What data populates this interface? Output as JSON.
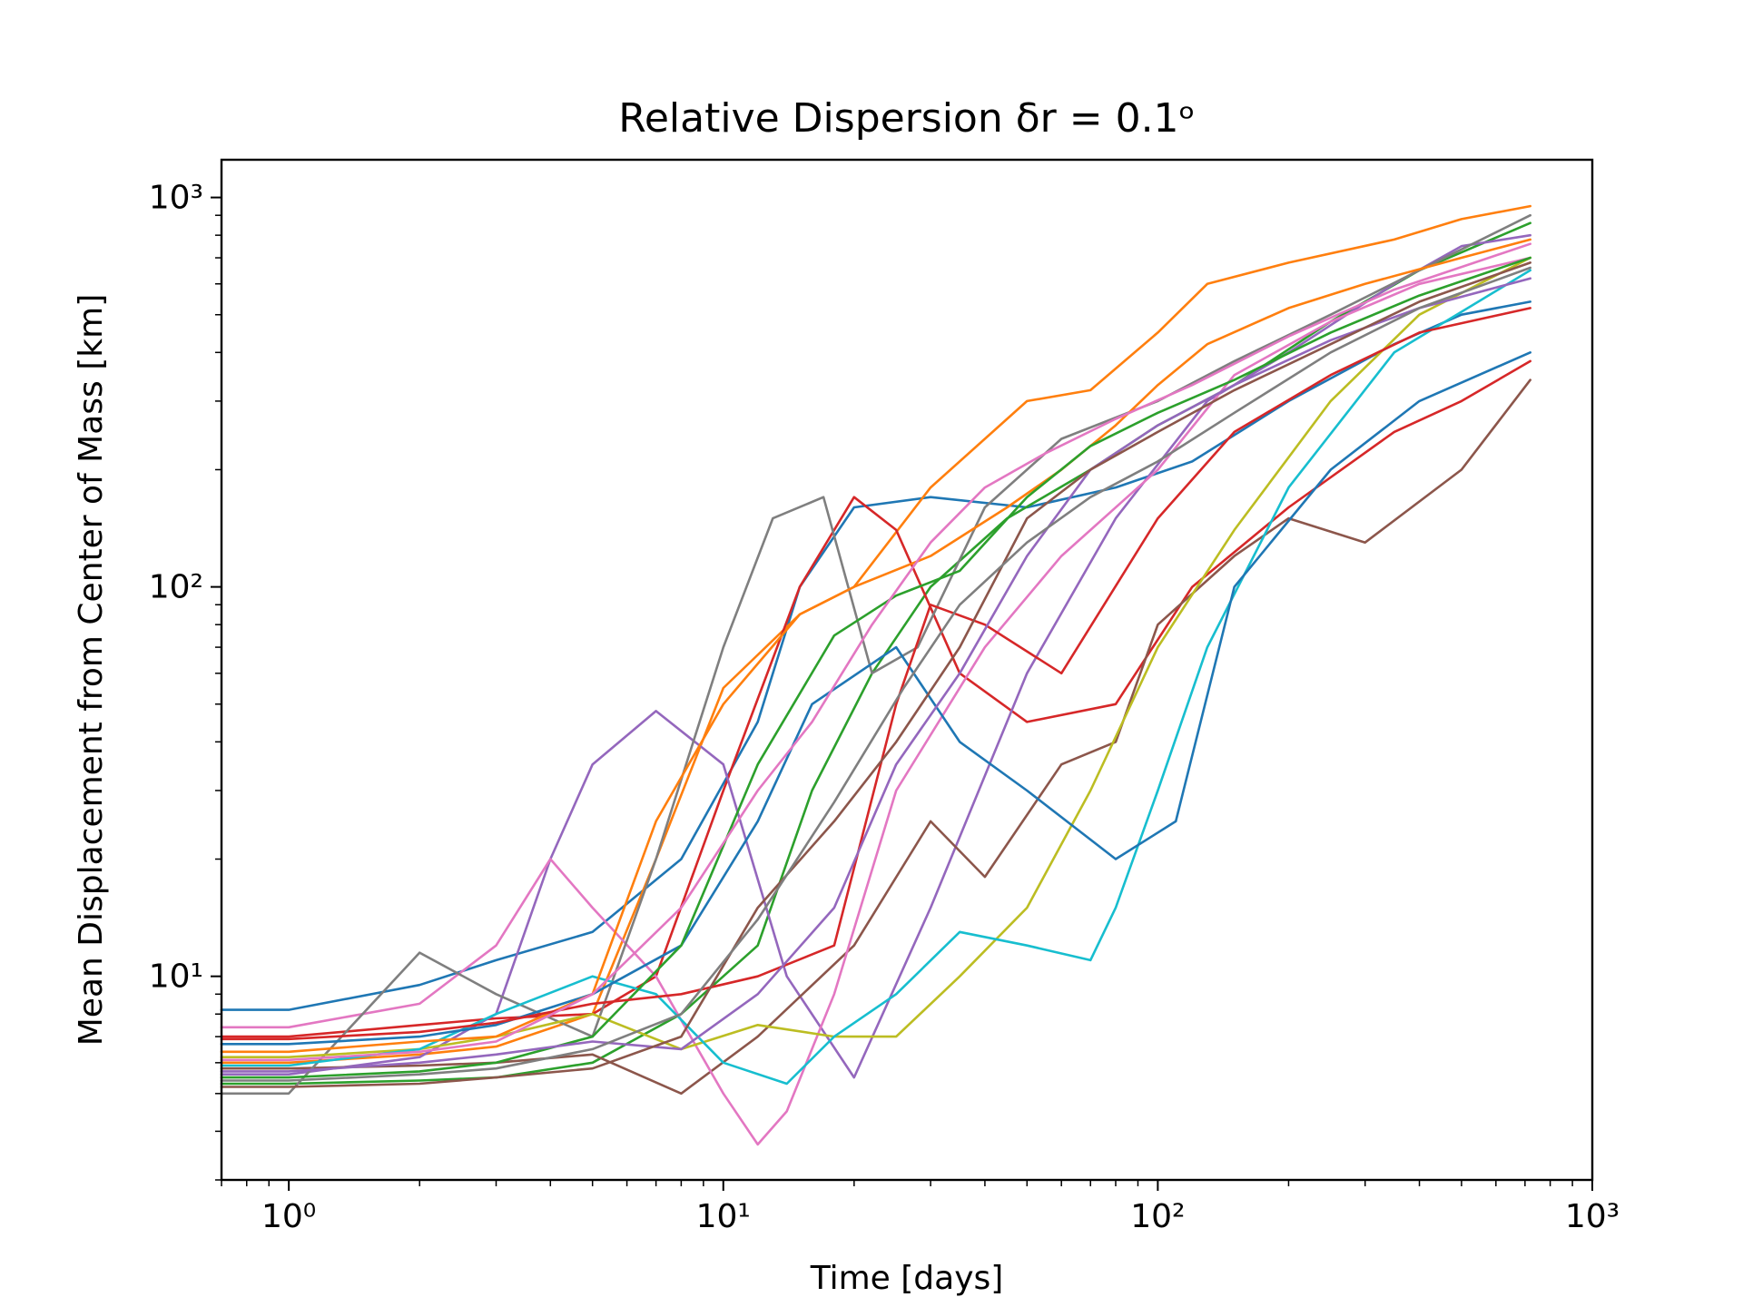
{
  "chart_data": {
    "type": "line",
    "title": "Relative Dispersion δr = 0.1ᵒ",
    "xlabel": "Time [days]",
    "ylabel": "Mean Displacement from Center of Mass [km]",
    "xscale": "log",
    "yscale": "log",
    "xlim": [
      0.7,
      1000
    ],
    "ylim": [
      3.0,
      1250
    ],
    "xticks": [
      {
        "value": 1,
        "label": "10⁰"
      },
      {
        "value": 10,
        "label": "10¹"
      },
      {
        "value": 100,
        "label": "10²"
      },
      {
        "value": 1000,
        "label": "10³"
      }
    ],
    "yticks": [
      {
        "value": 10,
        "label": "10¹"
      },
      {
        "value": 100,
        "label": "10²"
      },
      {
        "value": 1000,
        "label": "10³"
      }
    ],
    "grid": false,
    "legend": "none",
    "colors": [
      "#1f77b4",
      "#ff7f0e",
      "#2ca02c",
      "#d62728",
      "#9467bd",
      "#8c564b",
      "#e377c2",
      "#7f7f7f",
      "#bcbd22",
      "#17becf"
    ],
    "series": [
      {
        "x": [
          0.7,
          1,
          2,
          3,
          5,
          8,
          12,
          15,
          20,
          30,
          50,
          80,
          120,
          200,
          350,
          500,
          720
        ],
        "y": [
          8.2,
          8.2,
          9.5,
          11,
          13,
          20,
          45,
          100,
          160,
          170,
          160,
          180,
          210,
          300,
          420,
          500,
          540
        ]
      },
      {
        "x": [
          0.7,
          1,
          2,
          3,
          5,
          7,
          10,
          15,
          20,
          30,
          50,
          70,
          100,
          130,
          200,
          350,
          500,
          720
        ],
        "y": [
          6.0,
          6.0,
          6.3,
          6.6,
          8,
          20,
          55,
          85,
          100,
          180,
          300,
          320,
          450,
          600,
          680,
          780,
          880,
          950
        ]
      },
      {
        "x": [
          0.7,
          1,
          2,
          3,
          5,
          8,
          12,
          16,
          22,
          30,
          45,
          70,
          100,
          150,
          250,
          400,
          720
        ],
        "y": [
          5.3,
          5.3,
          5.4,
          5.5,
          6,
          8,
          12,
          30,
          60,
          100,
          150,
          200,
          260,
          330,
          480,
          650,
          860
        ]
      },
      {
        "x": [
          0.7,
          1,
          2,
          3,
          5,
          7,
          10,
          15,
          20,
          25,
          35,
          50,
          80,
          120,
          200,
          350,
          500,
          720
        ],
        "y": [
          7.0,
          7.0,
          7.5,
          7.8,
          8,
          10,
          30,
          100,
          170,
          140,
          60,
          45,
          50,
          100,
          160,
          250,
          300,
          380
        ]
      },
      {
        "x": [
          0.7,
          1,
          2,
          3,
          4,
          5,
          7,
          10,
          14,
          20,
          30,
          50,
          80,
          130,
          200,
          350,
          500,
          720
        ],
        "y": [
          5.6,
          5.6,
          6.2,
          8,
          20,
          35,
          48,
          35,
          10,
          5.5,
          15,
          60,
          150,
          300,
          400,
          600,
          750,
          800
        ]
      },
      {
        "x": [
          0.7,
          1,
          2,
          3,
          5,
          8,
          12,
          20,
          30,
          40,
          60,
          80,
          100,
          150,
          200,
          300,
          500,
          720
        ],
        "y": [
          5.8,
          5.8,
          5.9,
          6.0,
          6.3,
          5.0,
          7,
          12,
          25,
          18,
          35,
          40,
          80,
          120,
          150,
          130,
          200,
          340
        ]
      },
      {
        "x": [
          0.7,
          1,
          2,
          3,
          4,
          5,
          7,
          10,
          12,
          14,
          18,
          25,
          40,
          60,
          100,
          150,
          250,
          400,
          720
        ],
        "y": [
          7.4,
          7.4,
          8.5,
          12,
          20,
          15,
          10,
          5.0,
          3.7,
          4.5,
          9,
          30,
          70,
          120,
          200,
          350,
          480,
          600,
          700
        ]
      },
      {
        "x": [
          0.7,
          1,
          2,
          3,
          5,
          7,
          10,
          13,
          17,
          22,
          28,
          40,
          60,
          100,
          150,
          250,
          400,
          720
        ],
        "y": [
          5.0,
          5.0,
          11.5,
          9,
          7,
          20,
          70,
          150,
          170,
          60,
          70,
          160,
          240,
          300,
          380,
          500,
          650,
          900
        ]
      },
      {
        "x": [
          0.7,
          1,
          2,
          3,
          5,
          8,
          12,
          18,
          25,
          35,
          50,
          70,
          100,
          150,
          250,
          400,
          720
        ],
        "y": [
          6.2,
          6.2,
          6.5,
          7,
          8,
          6.5,
          7.5,
          7,
          7,
          10,
          15,
          30,
          70,
          140,
          300,
          500,
          700
        ]
      },
      {
        "x": [
          0.7,
          1,
          2,
          3,
          5,
          7,
          10,
          14,
          18,
          25,
          35,
          50,
          70,
          80,
          100,
          130,
          200,
          350,
          720
        ],
        "y": [
          5.9,
          5.9,
          6.5,
          8,
          10,
          9,
          6,
          5.3,
          7,
          9,
          13,
          12,
          11,
          15,
          30,
          70,
          180,
          400,
          650
        ]
      },
      {
        "x": [
          0.7,
          1,
          2,
          3,
          5,
          8,
          12,
          16,
          25,
          35,
          50,
          80,
          110,
          150,
          250,
          400,
          720
        ],
        "y": [
          6.7,
          6.7,
          7,
          7.5,
          9,
          12,
          25,
          50,
          70,
          40,
          30,
          20,
          25,
          100,
          200,
          300,
          400
        ]
      },
      {
        "x": [
          0.7,
          1,
          2,
          3,
          5,
          7,
          10,
          15,
          20,
          30,
          45,
          60,
          80,
          100,
          130,
          200,
          300,
          500,
          720
        ],
        "y": [
          6.4,
          6.4,
          6.8,
          7,
          9,
          25,
          50,
          85,
          100,
          120,
          160,
          200,
          260,
          330,
          420,
          520,
          600,
          700,
          780
        ]
      },
      {
        "x": [
          0.7,
          1,
          2,
          3,
          5,
          8,
          12,
          18,
          25,
          35,
          50,
          70,
          100,
          150,
          250,
          400,
          720
        ],
        "y": [
          5.5,
          5.5,
          5.7,
          6,
          7,
          12,
          35,
          75,
          95,
          110,
          170,
          230,
          280,
          340,
          450,
          560,
          700
        ]
      },
      {
        "x": [
          0.7,
          1,
          2,
          3,
          5,
          8,
          12,
          18,
          25,
          30,
          40,
          60,
          100,
          150,
          250,
          400,
          720
        ],
        "y": [
          6.9,
          6.9,
          7.2,
          7.6,
          8.5,
          9,
          10,
          12,
          50,
          90,
          80,
          60,
          150,
          250,
          350,
          450,
          520
        ]
      },
      {
        "x": [
          0.7,
          1,
          2,
          3,
          5,
          8,
          12,
          18,
          25,
          35,
          50,
          70,
          100,
          150,
          250,
          400,
          720
        ],
        "y": [
          5.7,
          5.7,
          6,
          6.3,
          6.8,
          6.5,
          9,
          15,
          35,
          60,
          120,
          200,
          260,
          330,
          430,
          520,
          620
        ]
      },
      {
        "x": [
          0.7,
          1,
          2,
          3,
          5,
          8,
          12,
          18,
          25,
          35,
          50,
          70,
          100,
          150,
          250,
          400,
          720
        ],
        "y": [
          5.2,
          5.2,
          5.3,
          5.5,
          5.8,
          7,
          15,
          25,
          40,
          70,
          150,
          200,
          250,
          320,
          420,
          540,
          680
        ]
      },
      {
        "x": [
          0.7,
          1,
          2,
          3,
          5,
          8,
          12,
          16,
          22,
          30,
          40,
          55,
          80,
          120,
          200,
          350,
          720
        ],
        "y": [
          6.1,
          6.1,
          6.4,
          6.8,
          9,
          15,
          30,
          45,
          80,
          130,
          180,
          220,
          270,
          330,
          440,
          580,
          760
        ]
      },
      {
        "x": [
          0.7,
          1,
          2,
          3,
          5,
          8,
          12,
          18,
          26,
          35,
          50,
          70,
          100,
          150,
          250,
          400,
          720
        ],
        "y": [
          5.4,
          5.4,
          5.6,
          5.8,
          6.5,
          8,
          14,
          28,
          55,
          90,
          130,
          170,
          210,
          280,
          400,
          520,
          660
        ]
      }
    ]
  }
}
